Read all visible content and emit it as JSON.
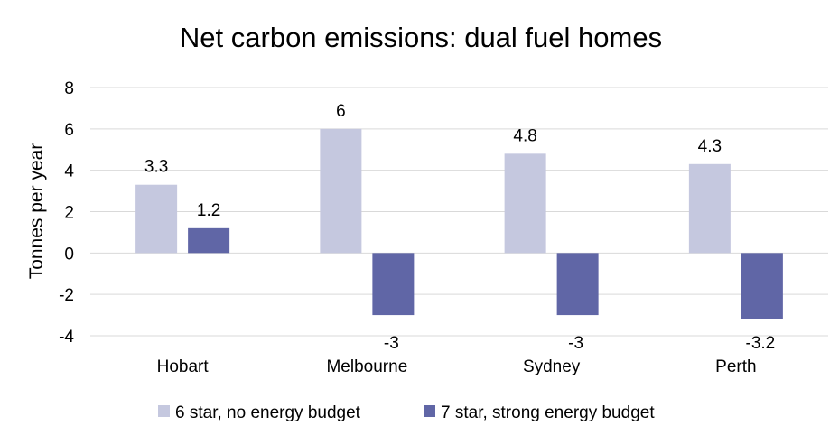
{
  "chart_data": {
    "type": "bar",
    "title": "Net carbon emissions: dual fuel homes",
    "xlabel": "",
    "ylabel": "Tonnes per year",
    "ylim": [
      -4,
      8
    ],
    "yticks": [
      -4,
      -2,
      0,
      2,
      4,
      6,
      8
    ],
    "grid": true,
    "legend_position": "bottom",
    "categories": [
      "Hobart",
      "Melbourne",
      "Sydney",
      "Perth"
    ],
    "series": [
      {
        "name": "6 star, no energy budget",
        "color": "#c5c8df",
        "values": [
          3.3,
          6,
          4.8,
          4.3
        ]
      },
      {
        "name": "7 star, strong energy budget",
        "color": "#6066a6",
        "values": [
          1.2,
          -3,
          -3,
          -3.2
        ]
      }
    ]
  }
}
